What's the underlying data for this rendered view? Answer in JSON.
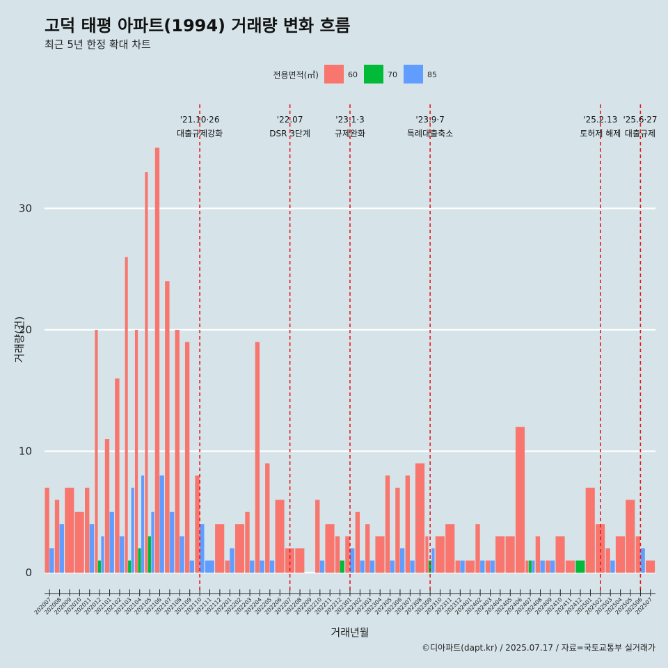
{
  "header": {
    "title": "고덕 태평 아파트(1994) 거래량 변화 흐름",
    "subtitle": "최근 5년 한정 확대 차트"
  },
  "legend": {
    "title": "전용면적(㎡)",
    "position": "top"
  },
  "caption": "©디아파트(dapt.kr) / 2025.07.17 / 자료=국토교통부 실거래가",
  "colors": {
    "60": "#f8766d",
    "70": "#00ba38",
    "85": "#619cff",
    "event": "#e41a1c",
    "grid": "#ffffff",
    "background": "#d6e4ea"
  },
  "chart_data": {
    "type": "bar",
    "xlabel": "거래년월",
    "ylabel": "거래량(건)",
    "ylim": [
      0,
      38
    ],
    "yticks": [
      0,
      10,
      20,
      30
    ],
    "grid": "horizontal",
    "categories": [
      "202007",
      "202008",
      "202009",
      "202010",
      "202011",
      "202012",
      "202101",
      "202102",
      "202103",
      "202104",
      "202105",
      "202106",
      "202107",
      "202108",
      "202109",
      "202110",
      "202111",
      "202112",
      "202201",
      "202202",
      "202203",
      "202204",
      "202205",
      "202206",
      "202207",
      "202208",
      "202209",
      "202210",
      "202211",
      "202212",
      "202301",
      "202302",
      "202303",
      "202304",
      "202305",
      "202306",
      "202307",
      "202308",
      "202309",
      "202310",
      "202311",
      "202312",
      "202401",
      "202402",
      "202403",
      "202404",
      "202405",
      "202406",
      "202407",
      "202408",
      "202409",
      "202410",
      "202411",
      "202412",
      "202501",
      "202502",
      "202503",
      "202504",
      "202505",
      "202506",
      "202507"
    ],
    "series": [
      {
        "name": "60",
        "values": [
          7,
          6,
          7,
          5,
          7,
          20,
          11,
          16,
          26,
          20,
          33,
          35,
          24,
          20,
          19,
          8,
          0,
          4,
          1,
          4,
          5,
          19,
          9,
          6,
          2,
          2,
          0,
          6,
          4,
          3,
          3,
          5,
          4,
          3,
          8,
          7,
          8,
          9,
          3,
          3,
          4,
          1,
          1,
          4,
          1,
          3,
          3,
          12,
          1,
          3,
          1,
          3,
          1,
          0,
          7,
          4,
          2,
          3,
          6,
          3,
          1
        ]
      },
      {
        "name": "70",
        "values": [
          0,
          0,
          0,
          0,
          0,
          1,
          0,
          0,
          1,
          2,
          3,
          0,
          0,
          0,
          0,
          0,
          0,
          0,
          0,
          0,
          0,
          0,
          0,
          0,
          0,
          0,
          0,
          0,
          0,
          1,
          0,
          0,
          0,
          0,
          0,
          0,
          0,
          0,
          1,
          0,
          0,
          0,
          0,
          0,
          0,
          0,
          0,
          0,
          1,
          0,
          0,
          0,
          0,
          1,
          0,
          0,
          0,
          0,
          0,
          0,
          0
        ]
      },
      {
        "name": "85",
        "values": [
          2,
          4,
          0,
          0,
          4,
          3,
          5,
          3,
          7,
          8,
          5,
          8,
          5,
          3,
          1,
          4,
          1,
          0,
          2,
          0,
          1,
          1,
          1,
          0,
          0,
          0,
          0,
          1,
          0,
          0,
          2,
          1,
          1,
          0,
          1,
          2,
          1,
          0,
          2,
          0,
          0,
          1,
          0,
          1,
          1,
          0,
          0,
          0,
          1,
          1,
          1,
          0,
          0,
          0,
          0,
          0,
          1,
          0,
          0,
          2,
          0
        ]
      }
    ],
    "events": [
      {
        "date": "'21.10·26",
        "label": "대출규제강화",
        "month": "202110"
      },
      {
        "date": "'22.07",
        "label": "DSR 3단계",
        "month": "202207"
      },
      {
        "date": "'23.1·3",
        "label": "규제완화",
        "month": "202301"
      },
      {
        "date": "'23.9·7",
        "label": "특례대출축소",
        "month": "202309"
      },
      {
        "date": "'25.2.13",
        "label": "토허제 해제",
        "month": "202502"
      },
      {
        "date": "'25.6·27",
        "label": "대출규제",
        "month": "202506"
      }
    ]
  }
}
